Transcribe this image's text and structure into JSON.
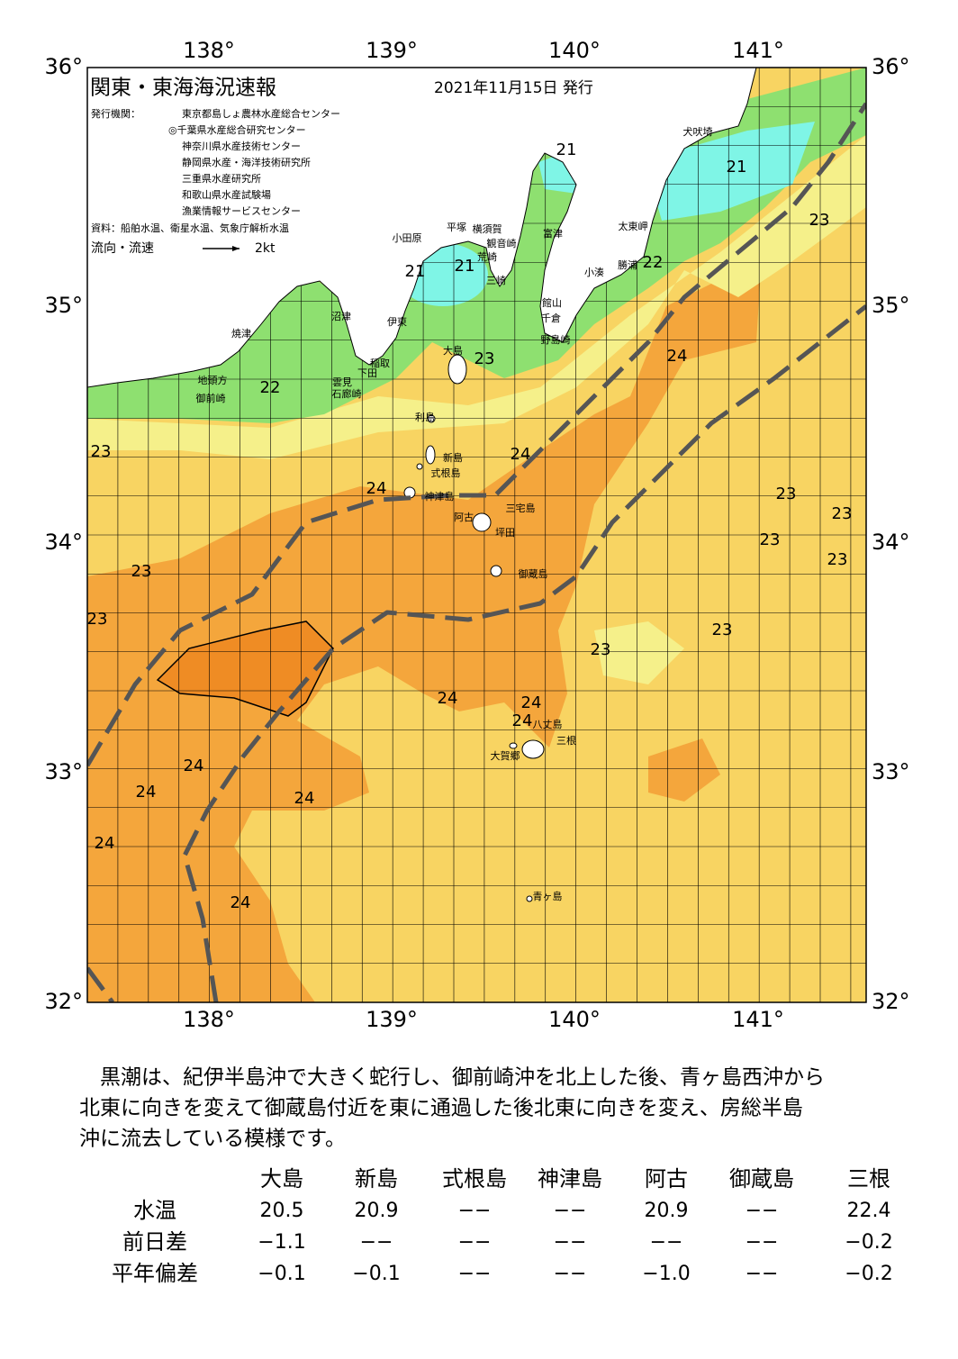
{
  "map": {
    "title": "関東・東海海況速報",
    "date": "2021年11月15日 発行",
    "issuer_label": "発行機関：",
    "issuers": [
      "東京都島しょ農林水産総合センター",
      "◎千葉県水産総合研究センター",
      "神奈川県水産技術センター",
      "静岡県水産・海洋技術研究所",
      "三重県水産研究所",
      "和歌山県水産試験場",
      "漁業情報サービスセンター"
    ],
    "source": "資料：船舶水温、衛星水温、気象庁解析水温",
    "flow_label": "流向・流速",
    "flow_scale": "2kt",
    "lon_labels": [
      "138°",
      "139°",
      "140°",
      "141°"
    ],
    "lat_labels": [
      "36°",
      "35°",
      "34°",
      "33°",
      "32°"
    ],
    "places": [
      "犬吠埼",
      "太東岬",
      "勝浦",
      "小湊",
      "館山",
      "千倉",
      "野島崎",
      "富津",
      "観音崎",
      "横須賀",
      "荒崎",
      "三崎",
      "平塚",
      "小田原",
      "沼津",
      "伊東",
      "焼津",
      "稲取",
      "下田",
      "雲見",
      "石廊崎",
      "地頭方",
      "御前崎",
      "大島",
      "利島",
      "新島",
      "式根島",
      "神津島",
      "三宅島",
      "阿古",
      "坪田",
      "御蔵島",
      "八丈島",
      "大賀郷",
      "三根",
      "青ヶ島"
    ],
    "isotherm_labels": [
      "21",
      "21",
      "23",
      "21",
      "21",
      "22",
      "24",
      "23",
      "22",
      "23",
      "24",
      "24",
      "23",
      "23",
      "23",
      "23",
      "23",
      "23",
      "23",
      "23",
      "24",
      "24",
      "24",
      "24",
      "24",
      "24",
      "24",
      "24"
    ]
  },
  "description": [
    "　黒潮は、紀伊半島沖で大きく蛇行し、御前崎沖を北上した後、青ヶ島西沖から",
    "北東に向きを変えて御蔵島付近を東に通過した後北東に向きを変え、房総半島",
    "沖に流去している模様です。"
  ],
  "table": {
    "columns": [
      "大島",
      "新島",
      "式根島",
      "神津島",
      "阿古",
      "御蔵島",
      "三根"
    ],
    "rows": [
      {
        "label": "水温",
        "cells": [
          "20.5",
          "20.9",
          "−−",
          "−−",
          "20.9",
          "−−",
          "22.4"
        ]
      },
      {
        "label": "前日差",
        "cells": [
          "−1.1",
          "−−",
          "−−",
          "−−",
          "−−",
          "−−",
          "−0.2"
        ]
      },
      {
        "label": "平年偏差",
        "cells": [
          "−0.1",
          "−0.1",
          "−−",
          "−−",
          "−1.0",
          "−−",
          "−0.2"
        ]
      }
    ]
  }
}
